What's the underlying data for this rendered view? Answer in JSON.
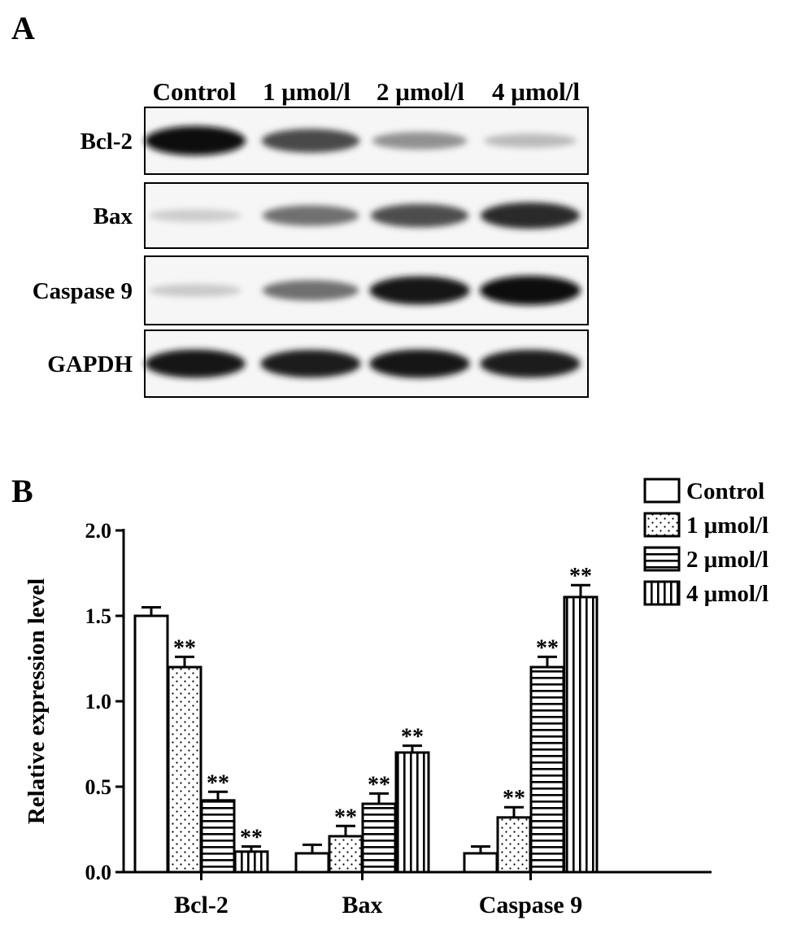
{
  "panel_a": {
    "letter": "A",
    "conditions": [
      "Control",
      "1 μmol/l",
      "2 μmol/l",
      "4 μmol/l"
    ],
    "rows": [
      {
        "label": "Bcl-2",
        "bands": [
          1.0,
          0.72,
          0.4,
          0.22
        ]
      },
      {
        "label": "Bax",
        "bands": [
          0.14,
          0.55,
          0.7,
          0.85
        ]
      },
      {
        "label": "Caspase 9",
        "bands": [
          0.15,
          0.55,
          0.95,
          1.0
        ]
      },
      {
        "label": "GAPDH",
        "bands": [
          0.95,
          0.92,
          0.95,
          0.93
        ]
      }
    ]
  },
  "panel_b": {
    "letter": "B",
    "chart_data": {
      "type": "bar",
      "categories": [
        "Bcl-2",
        "Bax",
        "Caspase 9"
      ],
      "series": [
        {
          "name": "Control",
          "values": [
            1.5,
            0.11,
            0.11
          ],
          "errors": [
            0.05,
            0.05,
            0.04
          ],
          "sig": [
            "",
            "",
            ""
          ],
          "pattern": "none"
        },
        {
          "name": "1 μmol/l",
          "values": [
            1.2,
            0.21,
            0.32
          ],
          "errors": [
            0.06,
            0.06,
            0.06
          ],
          "sig": [
            "**",
            "**",
            "**"
          ],
          "pattern": "dots"
        },
        {
          "name": "2 μmol/l",
          "values": [
            0.42,
            0.4,
            1.2
          ],
          "errors": [
            0.05,
            0.06,
            0.06
          ],
          "sig": [
            "**",
            "**",
            "**"
          ],
          "pattern": "hlines"
        },
        {
          "name": "4 μmol/l",
          "values": [
            0.12,
            0.7,
            1.61
          ],
          "errors": [
            0.03,
            0.04,
            0.07
          ],
          "sig": [
            "**",
            "**",
            "**"
          ],
          "pattern": "vlines"
        }
      ],
      "ylabel": "Relative expression level",
      "xlabel": "",
      "ylim": [
        0,
        2.0
      ],
      "yticks": [
        "0.0",
        "0.5",
        "1.0",
        "1.5",
        "2.0"
      ],
      "grid": false,
      "legend_position": "top-right"
    }
  }
}
